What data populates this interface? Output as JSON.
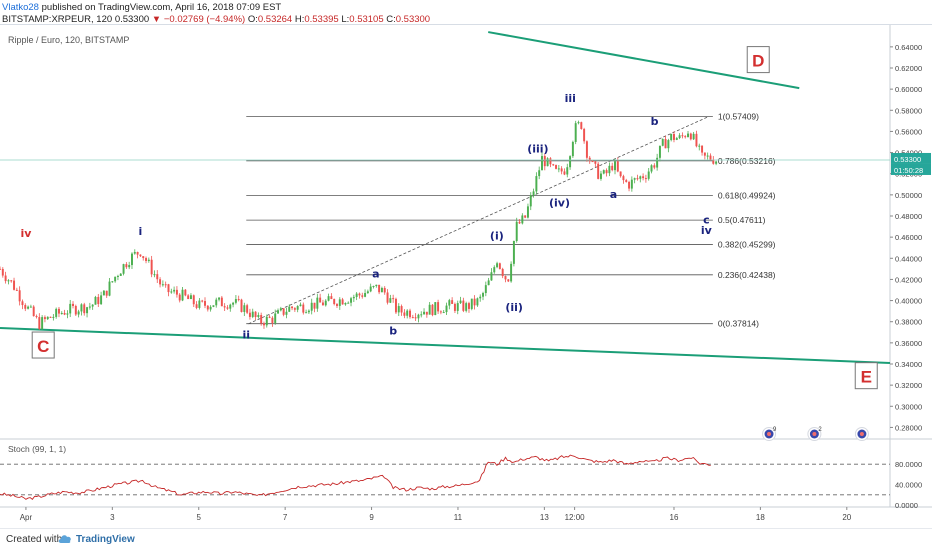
{
  "header": {
    "user": "Vlatko28",
    "published_text": " published on TradingView.com, April 16, 2018 07:09 EST",
    "symbol": "BITSTAMP:XRPEUR, 120",
    "last": "0.53300",
    "change_arrow": "▼",
    "change": "−0.02769 (−4.94%)",
    "open_label": "O:",
    "open": "0.53264",
    "high_label": "H:",
    "high": "0.53395",
    "low_label": "L:",
    "low": "0.53105",
    "close_label": "C:",
    "close": "0.53300"
  },
  "footer": {
    "created_with": "Created with",
    "brand": "TradingView",
    "logo_icon": "tradingview-cloud-icon"
  },
  "colors": {
    "up": "#4caf50",
    "down": "#ef5350",
    "wedge": "#1b9e77",
    "fib": "#555555",
    "wave": "#1a237e",
    "letter": "#d32f2f",
    "stoch": "#c62828"
  },
  "chart_data": {
    "type": "candlestick",
    "instrument_label": "Ripple / Euro, 120, BITSTAMP",
    "ylim": [
      0.27,
      0.655
    ],
    "y_ticks": [
      "0.64000",
      "0.62000",
      "0.60000",
      "0.58000",
      "0.56000",
      "0.54000",
      "0.52000",
      "0.50000",
      "0.48000",
      "0.46000",
      "0.44000",
      "0.42000",
      "0.40000",
      "0.38000",
      "0.36000",
      "0.34000",
      "0.32000",
      "0.30000",
      "0.28000"
    ],
    "x_ticks": [
      {
        "label": "Apr",
        "x": 0.6
      },
      {
        "label": "3",
        "x": 2.6
      },
      {
        "label": "5",
        "x": 4.6
      },
      {
        "label": "7",
        "x": 6.6
      },
      {
        "label": "9",
        "x": 8.6
      },
      {
        "label": "11",
        "x": 10.6
      },
      {
        "label": "13",
        "x": 12.6
      },
      {
        "label": "12:00",
        "x": 13.3
      },
      {
        "label": "16",
        "x": 15.6
      },
      {
        "label": "18",
        "x": 17.6
      },
      {
        "label": "20",
        "x": 19.6
      }
    ],
    "xlim": [
      0,
      20.6
    ],
    "last_price": "0.53300",
    "last_price_value": 0.533,
    "countdown": "01:50:28",
    "price_path": [
      [
        0.0,
        0.43
      ],
      [
        0.3,
        0.415
      ],
      [
        0.6,
        0.395
      ],
      [
        0.9,
        0.378
      ],
      [
        1.2,
        0.385
      ],
      [
        1.5,
        0.39
      ],
      [
        1.8,
        0.393
      ],
      [
        2.1,
        0.395
      ],
      [
        2.4,
        0.405
      ],
      [
        2.7,
        0.425
      ],
      [
        3.0,
        0.44
      ],
      [
        3.25,
        0.447
      ],
      [
        3.5,
        0.43
      ],
      [
        3.8,
        0.41
      ],
      [
        4.2,
        0.405
      ],
      [
        4.6,
        0.395
      ],
      [
        5.0,
        0.398
      ],
      [
        5.4,
        0.398
      ],
      [
        5.7,
        0.392
      ],
      [
        6.0,
        0.38
      ],
      [
        6.3,
        0.383
      ],
      [
        6.7,
        0.393
      ],
      [
        7.1,
        0.395
      ],
      [
        7.5,
        0.398
      ],
      [
        7.9,
        0.401
      ],
      [
        8.3,
        0.405
      ],
      [
        8.7,
        0.412
      ],
      [
        8.9,
        0.408
      ],
      [
        9.2,
        0.39
      ],
      [
        9.6,
        0.389
      ],
      [
        10.0,
        0.392
      ],
      [
        10.4,
        0.395
      ],
      [
        10.8,
        0.394
      ],
      [
        11.1,
        0.4
      ],
      [
        11.35,
        0.42
      ],
      [
        11.5,
        0.44
      ],
      [
        11.6,
        0.43
      ],
      [
        11.75,
        0.418
      ],
      [
        11.85,
        0.445
      ],
      [
        11.95,
        0.47
      ],
      [
        12.15,
        0.478
      ],
      [
        12.35,
        0.505
      ],
      [
        12.55,
        0.535
      ],
      [
        12.75,
        0.525
      ],
      [
        12.9,
        0.52
      ],
      [
        13.1,
        0.525
      ],
      [
        13.3,
        0.562
      ],
      [
        13.45,
        0.568
      ],
      [
        13.55,
        0.545
      ],
      [
        13.7,
        0.528
      ],
      [
        13.85,
        0.52
      ],
      [
        14.0,
        0.518
      ],
      [
        14.2,
        0.53
      ],
      [
        14.35,
        0.515
      ],
      [
        14.55,
        0.51
      ],
      [
        14.75,
        0.515
      ],
      [
        14.95,
        0.52
      ],
      [
        15.15,
        0.53
      ],
      [
        15.35,
        0.548
      ],
      [
        15.55,
        0.555
      ],
      [
        15.75,
        0.553
      ],
      [
        15.95,
        0.562
      ],
      [
        16.1,
        0.548
      ],
      [
        16.25,
        0.535
      ],
      [
        16.45,
        0.535
      ],
      [
        16.6,
        0.533
      ]
    ],
    "fibonacci": [
      {
        "level": "1",
        "value": 0.57409,
        "label": "1(0.57409)"
      },
      {
        "level": "0.786",
        "value": 0.53216,
        "label": "0.786(0.53216)"
      },
      {
        "level": "0.618",
        "value": 0.49924,
        "label": "0.618(0.49924)"
      },
      {
        "level": "0.5",
        "value": 0.47611,
        "label": "0.5(0.47611)"
      },
      {
        "level": "0.382",
        "value": 0.45299,
        "label": "0.382(0.45299)"
      },
      {
        "level": "0.236",
        "value": 0.42438,
        "label": "0.236(0.42438)"
      },
      {
        "level": "0",
        "value": 0.37814,
        "label": "0(0.37814)"
      }
    ],
    "fib_x_range": [
      5.7,
      16.5
    ],
    "trendlines": [
      {
        "name": "upper-wedge-line",
        "from": [
          11.3,
          0.654
        ],
        "to": [
          18.5,
          0.601
        ]
      },
      {
        "name": "lower-wedge-line",
        "from": [
          0.0,
          0.374
        ],
        "to": [
          20.6,
          0.341
        ]
      },
      {
        "name": "dashed-wave-line",
        "from": [
          5.75,
          0.378
        ],
        "to": [
          16.4,
          0.574
        ],
        "dashed": true
      }
    ],
    "wave_labels": [
      {
        "text": "iv",
        "x": 0.6,
        "y": 0.46,
        "color": "letter"
      },
      {
        "text": "i",
        "x": 3.25,
        "y": 0.462,
        "color": "wave"
      },
      {
        "text": "ii",
        "x": 5.7,
        "y": 0.364,
        "color": "wave"
      },
      {
        "text": "a",
        "x": 8.7,
        "y": 0.422,
        "color": "wave"
      },
      {
        "text": "b",
        "x": 9.1,
        "y": 0.368,
        "color": "wave"
      },
      {
        "text": "(i)",
        "x": 11.5,
        "y": 0.458,
        "color": "wave"
      },
      {
        "text": "(ii)",
        "x": 11.9,
        "y": 0.39,
        "color": "wave"
      },
      {
        "text": "(iii)",
        "x": 12.45,
        "y": 0.54,
        "color": "wave"
      },
      {
        "text": "iii",
        "x": 13.2,
        "y": 0.588,
        "color": "wave"
      },
      {
        "text": "(iv)",
        "x": 12.95,
        "y": 0.489,
        "color": "wave"
      },
      {
        "text": "a",
        "x": 14.2,
        "y": 0.497,
        "color": "wave"
      },
      {
        "text": "b",
        "x": 15.15,
        "y": 0.566,
        "color": "wave"
      },
      {
        "text": "c",
        "x": 16.35,
        "y": 0.473,
        "color": "wave"
      },
      {
        "text": "iv",
        "x": 16.35,
        "y": 0.463,
        "color": "wave"
      }
    ],
    "boxed_labels": [
      {
        "text": "C",
        "x": 1.0,
        "y": 0.357
      },
      {
        "text": "D",
        "x": 17.55,
        "y": 0.627
      },
      {
        "text": "E",
        "x": 20.05,
        "y": 0.328
      }
    ],
    "event_badges": [
      {
        "count": "9",
        "x": 17.8
      },
      {
        "count": "2",
        "x": 18.85
      },
      {
        "count": "",
        "x": 19.95
      }
    ],
    "stoch": {
      "label": "Stoch (99, 1, 1)",
      "ylim": [
        0,
        100
      ],
      "y_ticks": [
        "80.0000",
        "40.0000",
        "0.0000"
      ],
      "levels": [
        80,
        20
      ],
      "path": [
        [
          0.0,
          22
        ],
        [
          0.3,
          18
        ],
        [
          0.6,
          12
        ],
        [
          0.9,
          16
        ],
        [
          1.2,
          22
        ],
        [
          1.5,
          26
        ],
        [
          1.8,
          24
        ],
        [
          2.1,
          28
        ],
        [
          2.4,
          34
        ],
        [
          2.7,
          40
        ],
        [
          3.0,
          44
        ],
        [
          3.3,
          48
        ],
        [
          3.6,
          35
        ],
        [
          3.9,
          28
        ],
        [
          4.2,
          20
        ],
        [
          4.5,
          24
        ],
        [
          4.8,
          26
        ],
        [
          5.1,
          22
        ],
        [
          5.4,
          26
        ],
        [
          5.7,
          22
        ],
        [
          6.0,
          18
        ],
        [
          6.3,
          24
        ],
        [
          6.6,
          30
        ],
        [
          6.9,
          36
        ],
        [
          7.2,
          38
        ],
        [
          7.5,
          40
        ],
        [
          7.8,
          42
        ],
        [
          8.1,
          46
        ],
        [
          8.4,
          48
        ],
        [
          8.7,
          54
        ],
        [
          8.9,
          56
        ],
        [
          9.1,
          34
        ],
        [
          9.4,
          30
        ],
        [
          9.7,
          34
        ],
        [
          10.0,
          32
        ],
        [
          10.3,
          36
        ],
        [
          10.6,
          38
        ],
        [
          10.9,
          44
        ],
        [
          11.1,
          48
        ],
        [
          11.3,
          85
        ],
        [
          11.5,
          80
        ],
        [
          11.7,
          92
        ],
        [
          11.9,
          84
        ],
        [
          12.1,
          90
        ],
        [
          12.4,
          94
        ],
        [
          12.7,
          86
        ],
        [
          13.0,
          94
        ],
        [
          13.3,
          97
        ],
        [
          13.6,
          88
        ],
        [
          13.9,
          84
        ],
        [
          14.2,
          88
        ],
        [
          14.5,
          80
        ],
        [
          14.8,
          86
        ],
        [
          15.1,
          84
        ],
        [
          15.4,
          92
        ],
        [
          15.7,
          88
        ],
        [
          16.0,
          93
        ],
        [
          16.2,
          82
        ],
        [
          16.5,
          79
        ]
      ]
    }
  }
}
